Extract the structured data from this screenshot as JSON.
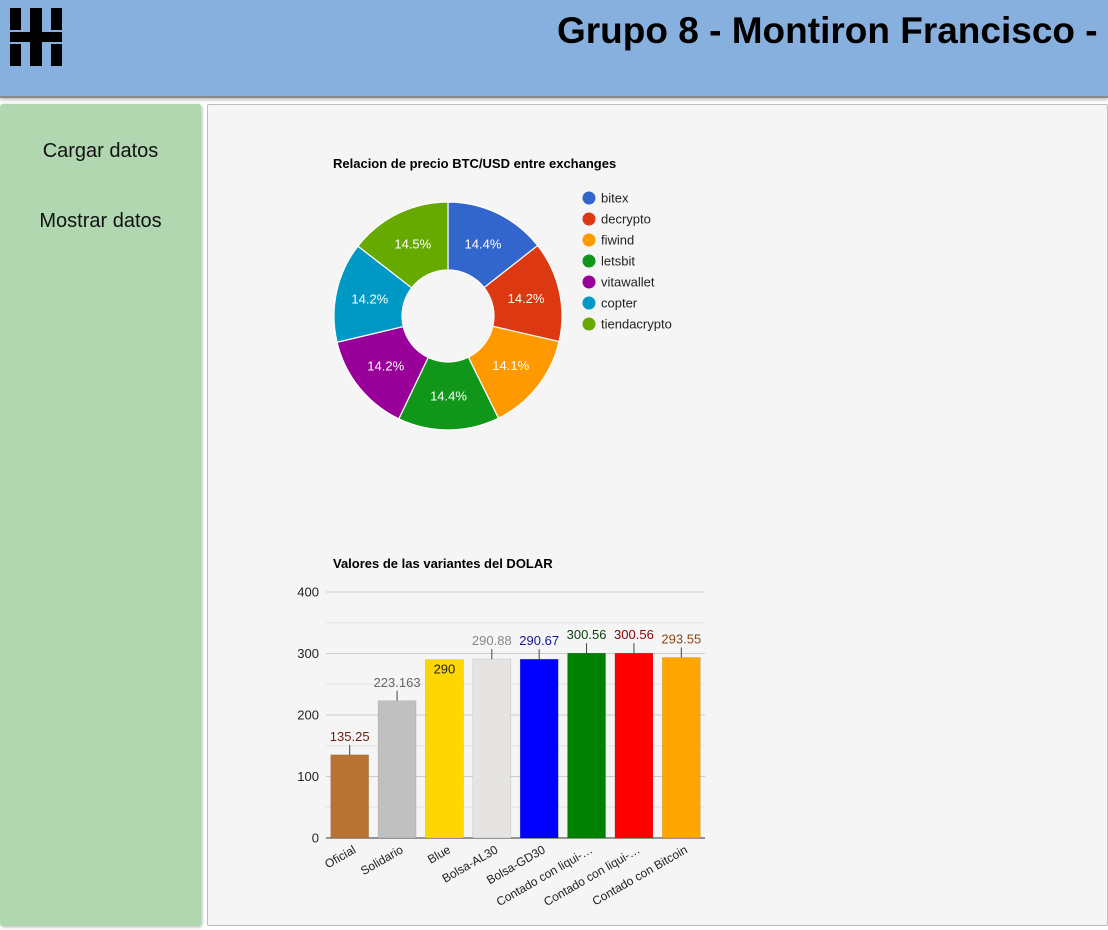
{
  "header": {
    "title": "Grupo 8 - Montiron Francisco -",
    "logo_icon": "utn-logo-icon"
  },
  "sidebar": {
    "items": [
      {
        "label": "Cargar datos"
      },
      {
        "label": "Mostrar datos"
      }
    ]
  },
  "chart_data": [
    {
      "type": "pie",
      "donut": true,
      "title": "Relacion de precio BTC/USD entre exchanges",
      "legend_position": "right",
      "categories": [
        "bitex",
        "decrypto",
        "fiwind",
        "letsbit",
        "vitawallet",
        "copter",
        "tiendacrypto"
      ],
      "values": [
        14.4,
        14.2,
        14.1,
        14.4,
        14.2,
        14.2,
        14.5
      ],
      "labels": [
        "14.4%",
        "14.2%",
        "14.1%",
        "14.4%",
        "14.2%",
        "14.2%",
        "14.5%"
      ],
      "colors": [
        "#3366cc",
        "#dc3912",
        "#ff9900",
        "#109618",
        "#990099",
        "#0099c6",
        "#66aa00"
      ]
    },
    {
      "type": "bar",
      "title": "Valores de las variantes del DOLAR",
      "categories": [
        "Oficial",
        "Solidario",
        "Blue",
        "Bolsa-AL30",
        "Bolsa-GD30",
        "Contado con liqui-…",
        "Contado con liqui-…",
        "Contado con Bitcoin"
      ],
      "values": [
        135.25,
        223.163,
        290,
        290.88,
        290.67,
        300.56,
        300.56,
        293.55
      ],
      "value_labels": [
        "135.25",
        "223.163",
        "290",
        "290.88",
        "290.67",
        "300.56",
        "300.56",
        "293.55"
      ],
      "colors": [
        "#b87333",
        "#c0c0c0",
        "#ffd700",
        "#e5e4e2",
        "#0000ff",
        "#008000",
        "#ff0000",
        "#ffa500"
      ],
      "label_colors": [
        "#6b1e0e",
        "#666666",
        "#222222",
        "#888888",
        "#141494",
        "#0b3d0b",
        "#8b0000",
        "#8b4513"
      ],
      "ylim": [
        0,
        400
      ],
      "yticks": [
        0,
        100,
        200,
        300,
        400
      ],
      "grid": true
    }
  ]
}
